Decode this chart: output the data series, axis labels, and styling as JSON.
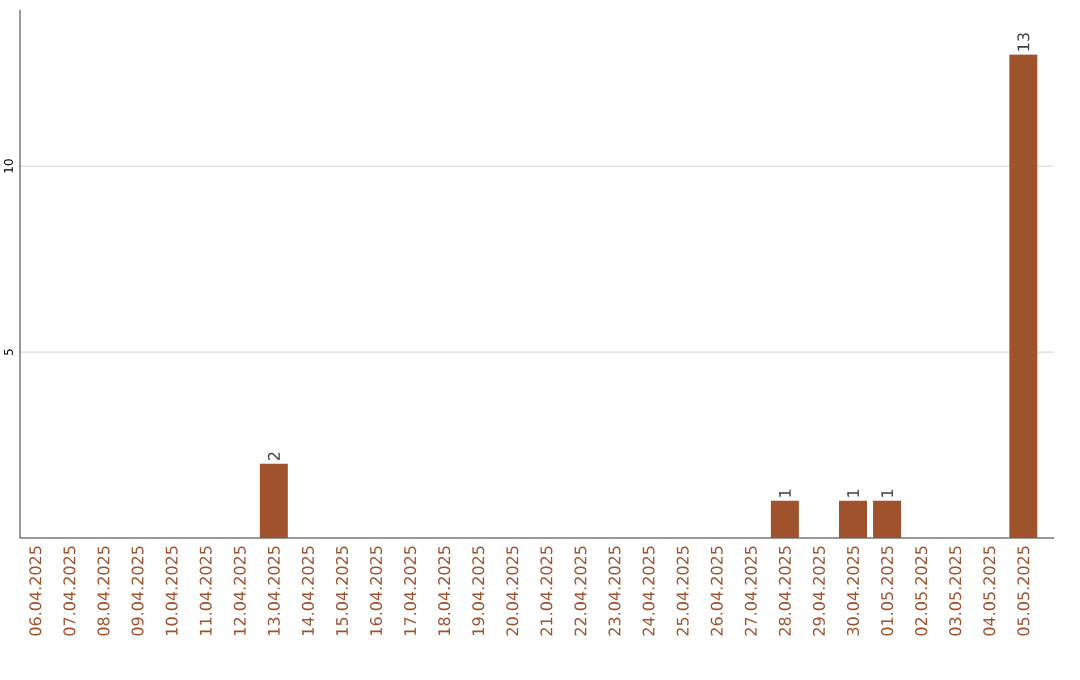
{
  "chart_data": {
    "type": "bar",
    "categories": [
      "06.04.2025",
      "07.04.2025",
      "08.04.2025",
      "09.04.2025",
      "10.04.2025",
      "11.04.2025",
      "12.04.2025",
      "13.04.2025",
      "14.04.2025",
      "15.04.2025",
      "16.04.2025",
      "17.04.2025",
      "18.04.2025",
      "19.04.2025",
      "20.04.2025",
      "21.04.2025",
      "22.04.2025",
      "23.04.2025",
      "24.04.2025",
      "25.04.2025",
      "26.04.2025",
      "27.04.2025",
      "28.04.2025",
      "29.04.2025",
      "30.04.2025",
      "01.05.2025",
      "02.05.2025",
      "03.05.2025",
      "04.05.2025",
      "05.05.2025"
    ],
    "values": [
      0,
      0,
      0,
      0,
      0,
      0,
      0,
      2,
      0,
      0,
      0,
      0,
      0,
      0,
      0,
      0,
      0,
      0,
      0,
      0,
      0,
      0,
      1,
      0,
      1,
      1,
      0,
      0,
      0,
      13
    ],
    "value_labels": [
      null,
      null,
      null,
      null,
      null,
      null,
      null,
      "2",
      null,
      null,
      null,
      null,
      null,
      null,
      null,
      null,
      null,
      null,
      null,
      null,
      null,
      null,
      "1",
      null,
      "1",
      "1",
      null,
      null,
      null,
      "13"
    ],
    "color": "#a0522d",
    "ylim": [
      0,
      14.2
    ],
    "yticks": [
      5,
      10
    ],
    "grid": "y"
  }
}
